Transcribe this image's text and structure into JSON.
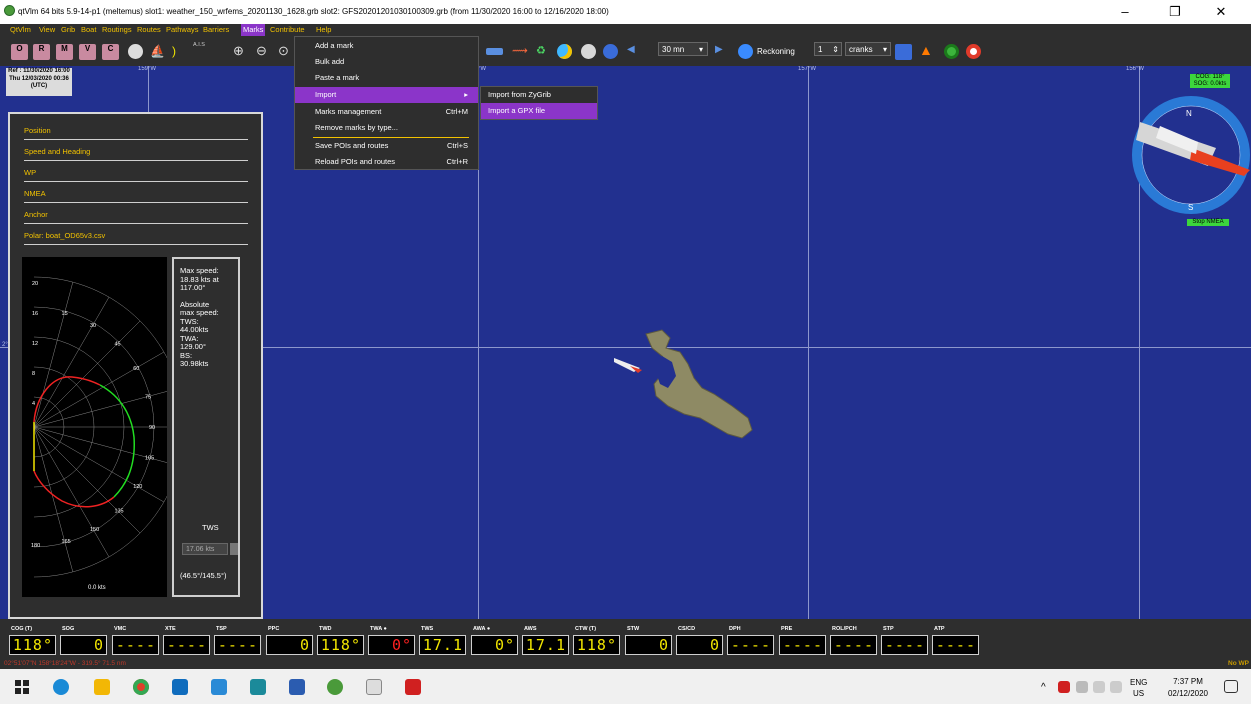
{
  "window": {
    "title": "qtVlm 64 bits 5.9-14-p1 (meltemus) slot1: weather_150_wrfems_20201130_1628.grb slot2: GFS20201201030100309.grb (from 11/30/2020 16:00 to 12/16/2020 18:00)",
    "minimize": "–",
    "maximize": "❐",
    "close": "✕"
  },
  "menubar": [
    "QtVlm",
    "View",
    "Grib",
    "Boat",
    "Routings",
    "Routes",
    "Pathways",
    "Barriers",
    "Marks",
    "Contribute",
    "Help"
  ],
  "toolbar": {
    "letters": [
      "O",
      "R",
      "M",
      "V",
      "C"
    ],
    "ais": "A.I.S",
    "interval": "30 mn",
    "reckoning": "Reckoning",
    "spin_value": "1",
    "cranks": "cranks"
  },
  "marks_menu": {
    "items": [
      {
        "label": "Add a mark",
        "shortcut": ""
      },
      {
        "label": "Bulk add",
        "shortcut": ""
      },
      {
        "label": "Paste a mark",
        "shortcut": ""
      },
      {
        "label": "Import",
        "shortcut": "▸"
      },
      {
        "label": "Marks management",
        "shortcut": "Ctrl+M"
      },
      {
        "label": "Remove marks by type...",
        "shortcut": ""
      },
      {
        "label": "Save POIs and routes",
        "shortcut": "Ctrl+S"
      },
      {
        "label": "Reload POIs and routes",
        "shortcut": "Ctrl+R"
      }
    ],
    "import_submenu": [
      "Import from ZyGrib",
      "Import a GPX file"
    ]
  },
  "map": {
    "ref_line1": "Ref : 11/30/2020 16:00",
    "ref_line2": "Thu 12/03/2020 00:36",
    "ref_line3": "(UTC)",
    "lon_labels": [
      "159°W",
      "158°W",
      "157°W",
      "156°W"
    ],
    "lat_label": "2°"
  },
  "left_panel": {
    "sections": [
      "Position",
      "Speed and Heading",
      "WP",
      "NMEA",
      "Anchor",
      "Polar: boat_OD65v3.csv"
    ],
    "polar_angles": [
      "15",
      "30",
      "45",
      "60",
      "75",
      "90",
      "105",
      "120",
      "135",
      "150",
      "165",
      "180"
    ],
    "polar_speeds": [
      "20",
      "16",
      "12",
      "8",
      "4"
    ],
    "polar_speed_footer": "0.0 kts",
    "max_speed_text": [
      "Max speed:",
      "18.83 kts at",
      "117.00°",
      "",
      "Absolute",
      "max speed:",
      "TWS:",
      "44.00kts",
      "TWA:",
      "129.00°",
      "BS:",
      "30.98kts"
    ],
    "tws_label": "TWS",
    "tws_value": "17.06 kts",
    "twa_range": "(46.5°/145.5°)"
  },
  "compass": {
    "cog": "COG: 118°",
    "sog": "SOG: 0.0kts",
    "n_label": "N",
    "s_label": "S",
    "stop_nmea": "Stop NMEA"
  },
  "instruments": [
    {
      "label": "COG (T)",
      "value": "118°",
      "red": false
    },
    {
      "label": "SOG",
      "value": "0",
      "red": false
    },
    {
      "label": "VMC",
      "value": "----",
      "red": false
    },
    {
      "label": "XTE",
      "value": "----",
      "red": false
    },
    {
      "label": "TSP",
      "value": "----",
      "red": false
    },
    {
      "label": "PPC",
      "value": "0",
      "red": false
    },
    {
      "label": "TWD",
      "value": "118°",
      "red": false
    },
    {
      "label": "TWA ●",
      "value": "0°",
      "red": true
    },
    {
      "label": "TWS",
      "value": "17.1",
      "red": false
    },
    {
      "label": "AWA ●",
      "value": "0°",
      "red": false
    },
    {
      "label": "AWS",
      "value": "17.1",
      "red": false
    },
    {
      "label": "CTW (T)",
      "value": "118°",
      "red": false
    },
    {
      "label": "STW",
      "value": "0",
      "red": false
    },
    {
      "label": "CS/CD",
      "value": "0",
      "red": false
    },
    {
      "label": "DPH",
      "value": "----",
      "red": false
    },
    {
      "label": "PRE",
      "value": "----",
      "red": false
    },
    {
      "label": "ROL/PCH",
      "value": "----",
      "red": false
    },
    {
      "label": "STP",
      "value": "----",
      "red": false
    },
    {
      "label": "ATP",
      "value": "----",
      "red": false
    }
  ],
  "status": {
    "coord": "02°51'07\"N 158°18'24\"W - 319.5° 71.5 nm",
    "right": "No WP"
  },
  "taskbar": {
    "lang1": "ENG",
    "lang2": "US",
    "time": "7:37 PM",
    "date": "02/12/2020"
  },
  "colors": {
    "sea": "#22308f",
    "land": "#8e8a64",
    "accent": "#8b35c9",
    "menu_text": "#f2c200",
    "polar_green": "#22dd22",
    "polar_red": "#ee2222"
  }
}
